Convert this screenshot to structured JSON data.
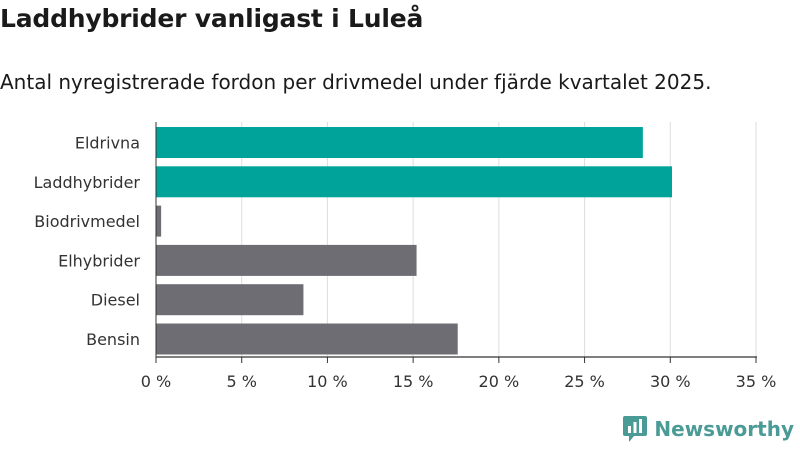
{
  "title": "Laddhybrider vanligast i Luleå",
  "subtitle": "Antal nyregistrerade fordon per drivmedel under fjärde kvartalet 2025.",
  "brand": {
    "name": "Newsworthy",
    "icon": "newsworthy-logo-icon",
    "color": "#4a9a95"
  },
  "colors": {
    "highlight": "#00a39a",
    "default": "#6e6d73",
    "grid": "#dddddd",
    "axis": "#333333"
  },
  "chart_data": {
    "type": "bar",
    "orientation": "horizontal",
    "categories": [
      "Eldrivna",
      "Laddhybrider",
      "Biodrivmedel",
      "Elhybrider",
      "Diesel",
      "Bensin"
    ],
    "values": [
      28.4,
      30.1,
      0.3,
      15.2,
      8.6,
      17.6
    ],
    "highlighted": [
      true,
      true,
      false,
      false,
      false,
      false
    ],
    "unit": "%",
    "xlim": [
      0,
      35
    ],
    "xticks": [
      0,
      5,
      10,
      15,
      20,
      25,
      30,
      35
    ],
    "xtick_labels": [
      "0 %",
      "5 %",
      "10 %",
      "15 %",
      "20 %",
      "25 %",
      "30 %",
      "35 %"
    ],
    "grid": true,
    "xlabel": "",
    "ylabel": ""
  }
}
